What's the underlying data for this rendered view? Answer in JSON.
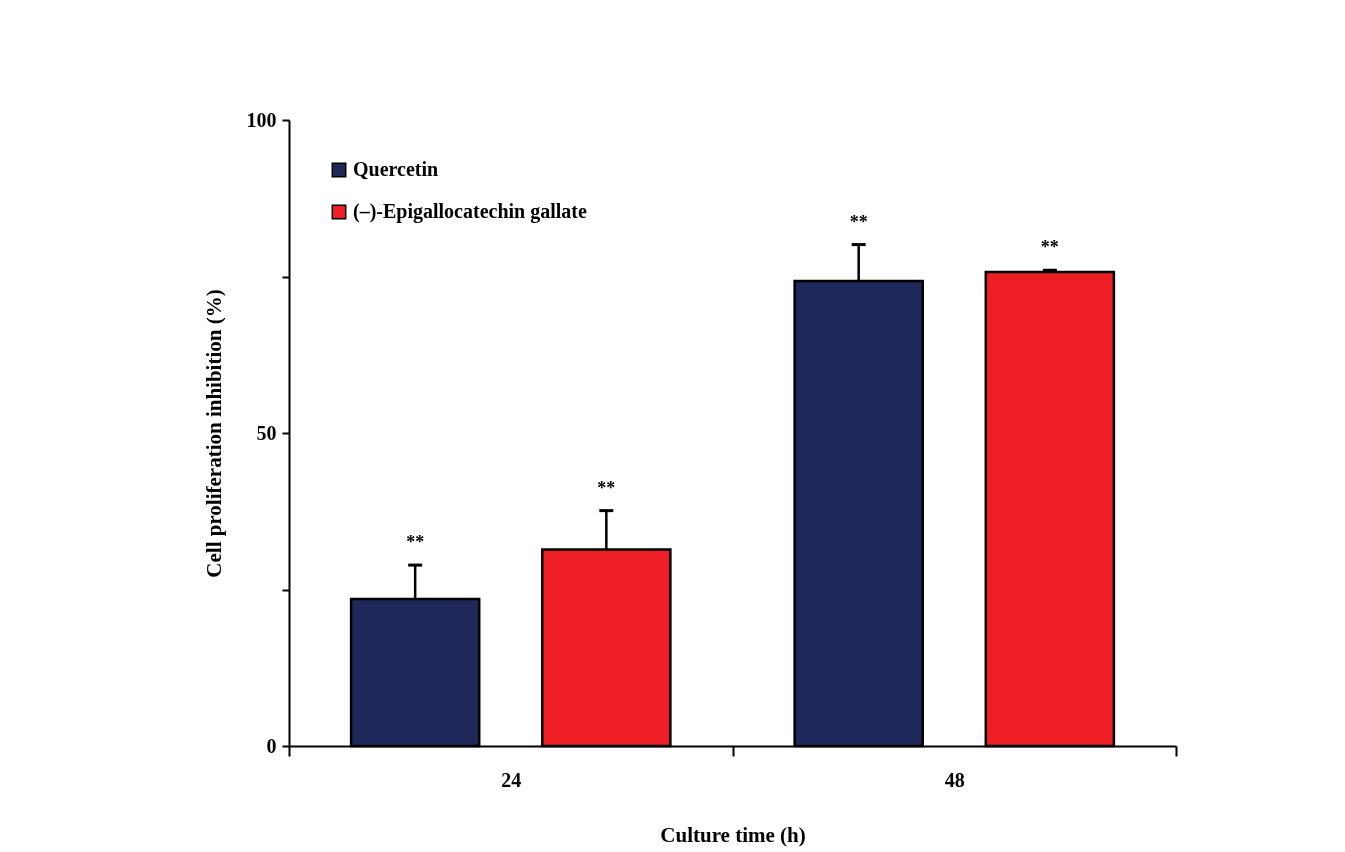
{
  "chart_data": {
    "type": "bar",
    "xlabel": "Culture time (h)",
    "ylabel": "Cell proliferation inhibition (%)",
    "categories": [
      "24",
      "48"
    ],
    "series": [
      {
        "name": "Quercetin",
        "color": "#1f2859",
        "values": [
          23.5,
          74.3
        ],
        "errors": [
          [
            23.5,
            28.9
          ],
          [
            74.3,
            80.1
          ]
        ]
      },
      {
        "name": "(–)-Epigallocatechin gallate",
        "color": "#ee1f24",
        "values": [
          31.4,
          75.7
        ],
        "errors": [
          [
            31.4,
            37.6
          ],
          [
            75.7,
            76.0
          ]
        ]
      }
    ],
    "ylim": [
      0,
      100
    ],
    "yticks": [
      0,
      {
        "value": 25,
        "label": null
      },
      50,
      {
        "value": 75,
        "label": null
      },
      100
    ],
    "annotations": [
      "**",
      "**",
      "**",
      "**"
    ],
    "grid": false,
    "legend": "top left"
  }
}
